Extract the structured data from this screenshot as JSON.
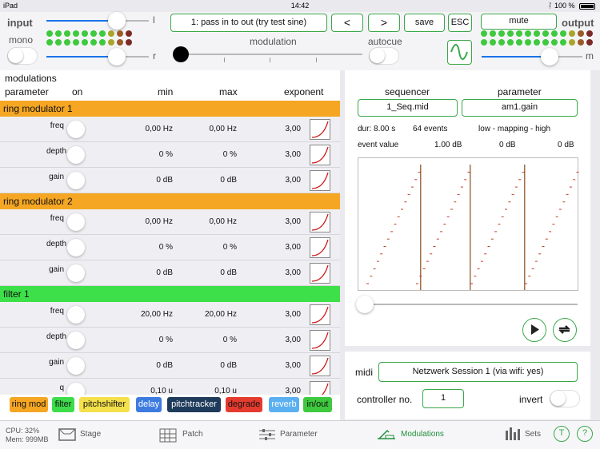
{
  "status": {
    "device": "iPad",
    "time": "14:42",
    "battery": "100 %"
  },
  "input": {
    "label": "input",
    "mono_label": "mono",
    "l_label": "l",
    "r_label": "r"
  },
  "output": {
    "label": "output",
    "m_label": "m"
  },
  "patch": {
    "name": "1: pass in to out (try test sine)"
  },
  "buttons": {
    "prev": "<",
    "next": ">",
    "save": "save",
    "esc": "ESC",
    "mute": "mute"
  },
  "modulation": {
    "label": "modulation",
    "autocue": "autocue"
  },
  "modulations": {
    "title": "modulations",
    "headers": {
      "parameter": "parameter",
      "on": "on",
      "min": "min",
      "max": "max",
      "exponent": "exponent"
    },
    "groups": [
      {
        "name": "ring modulator 1",
        "rows": [
          {
            "p": "freq",
            "min": "0,00 Hz",
            "max": "0,00 Hz",
            "exp": "3,00"
          },
          {
            "p": "depth",
            "min": "0 %",
            "max": "0 %",
            "exp": "3,00"
          },
          {
            "p": "gain",
            "min": "0 dB",
            "max": "0 dB",
            "exp": "3,00"
          }
        ]
      },
      {
        "name": "ring modulator 2",
        "rows": [
          {
            "p": "freq",
            "min": "0,00 Hz",
            "max": "0,00 Hz",
            "exp": "3,00"
          },
          {
            "p": "depth",
            "min": "0 %",
            "max": "0 %",
            "exp": "3,00"
          },
          {
            "p": "gain",
            "min": "0 dB",
            "max": "0 dB",
            "exp": "3,00"
          }
        ]
      },
      {
        "name": "filter 1",
        "rows": [
          {
            "p": "freq",
            "min": "20,00 Hz",
            "max": "20,00 Hz",
            "exp": "3,00"
          },
          {
            "p": "depth",
            "min": "0 %",
            "max": "0 %",
            "exp": "3,00"
          },
          {
            "p": "gain",
            "min": "0 dB",
            "max": "0 dB",
            "exp": "3,00"
          },
          {
            "p": "q",
            "min": "0,10 u",
            "max": "0,10 u",
            "exp": "3,00"
          }
        ]
      }
    ]
  },
  "module_buttons": [
    {
      "label": "ring mod",
      "color": "#f5a623"
    },
    {
      "label": "filter",
      "color": "#3ddc4a"
    },
    {
      "label": "pitchshifter",
      "color": "#f4e04a"
    },
    {
      "label": "delay",
      "color": "#3d7be0"
    },
    {
      "label": "pitchtracker",
      "color": "#1f3b5c"
    },
    {
      "label": "degrade",
      "color": "#e53b2f"
    },
    {
      "label": "reverb",
      "color": "#5ab0f0"
    },
    {
      "label": "in/out",
      "color": "#3ec93e"
    }
  ],
  "sequencer": {
    "label": "sequencer",
    "parameter_label": "parameter",
    "file": "1_Seq.mid",
    "param": "am1.gain",
    "dur": "dur: 8.00 s",
    "events": "64 events",
    "mapping": "low - mapping - high",
    "event_value_label": "event value",
    "event_value": "1.00 dB",
    "low": "0 dB",
    "high": "0 dB"
  },
  "midi": {
    "label": "midi",
    "session": "Netzwerk Session 1 (via wifi: yes)",
    "controller_label": "controller no.",
    "controller": "1",
    "invert": "invert"
  },
  "meters": {
    "cpu": "CPU: 32%",
    "mem": "Mem: 999MB"
  },
  "tabs": [
    {
      "label": "Stage",
      "icon": "stage-icon"
    },
    {
      "label": "Patch",
      "icon": "patch-icon"
    },
    {
      "label": "Parameter",
      "icon": "parameter-icon"
    },
    {
      "label": "Modulations",
      "icon": "modulations-icon",
      "active": true
    },
    {
      "label": "Sets",
      "icon": "sets-icon"
    }
  ],
  "colors": {
    "accent_green": "#3aa84a",
    "ring_header": "#f5a623",
    "filter_header": "#3ee04a",
    "curve": "#cc1111"
  }
}
